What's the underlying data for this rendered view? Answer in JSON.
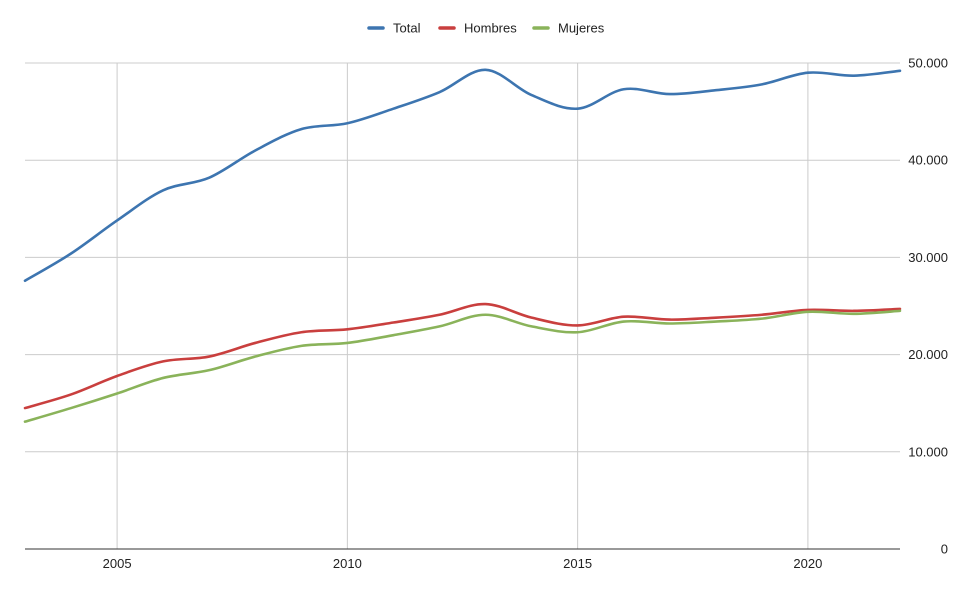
{
  "chart_data": {
    "type": "line",
    "title": "",
    "xlabel": "",
    "ylabel": "",
    "x": [
      2003,
      2004,
      2005,
      2006,
      2007,
      2008,
      2009,
      2010,
      2011,
      2012,
      2013,
      2014,
      2015,
      2016,
      2017,
      2018,
      2019,
      2020,
      2021,
      2022
    ],
    "series": [
      {
        "name": "Total",
        "color": "#3d75b0",
        "values": [
          27600,
          30400,
          33800,
          36900,
          38200,
          41000,
          43200,
          43800,
          45300,
          47000,
          49300,
          46700,
          45300,
          47300,
          46800,
          47200,
          47800,
          49000,
          48700,
          49200
        ]
      },
      {
        "name": "Hombres",
        "color": "#c93f3e",
        "values": [
          14500,
          15900,
          17800,
          19300,
          19800,
          21200,
          22300,
          22600,
          23300,
          24100,
          25200,
          23800,
          23000,
          23900,
          23600,
          23800,
          24100,
          24600,
          24500,
          24700
        ]
      },
      {
        "name": "Mujeres",
        "color": "#8ab35a",
        "values": [
          13100,
          14500,
          16000,
          17600,
          18400,
          19800,
          20900,
          21200,
          22000,
          22900,
          24100,
          22900,
          22300,
          23400,
          23200,
          23400,
          23700,
          24400,
          24200,
          24500
        ]
      }
    ],
    "x_ticks": [
      {
        "value": 2005,
        "label": "2005"
      },
      {
        "value": 2010,
        "label": "2010"
      },
      {
        "value": 2015,
        "label": "2015"
      },
      {
        "value": 2020,
        "label": "2020"
      }
    ],
    "y_ticks": [
      {
        "value": 0,
        "label": "0"
      },
      {
        "value": 10000,
        "label": "10.000"
      },
      {
        "value": 20000,
        "label": "20.000"
      },
      {
        "value": 30000,
        "label": "30.000"
      },
      {
        "value": 40000,
        "label": "40.000"
      },
      {
        "value": 50000,
        "label": "50.000"
      }
    ],
    "xlim": [
      2003,
      2022
    ],
    "ylim": [
      0,
      50000
    ],
    "grid": true,
    "y_axis_side": "right",
    "legend_position": "top"
  }
}
